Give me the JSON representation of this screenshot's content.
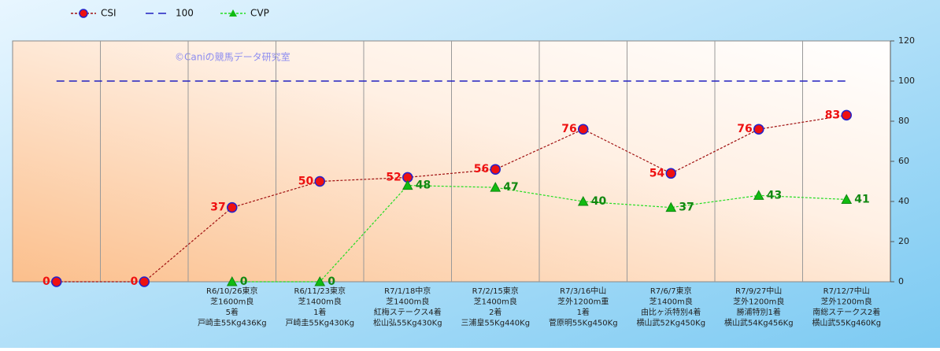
{
  "chart_data": {
    "type": "line",
    "annotation": "©Caniの競馬データ研究室",
    "categories": [
      null,
      null,
      [
        "R6/10/26東京",
        "芝1600m良",
        "5着",
        "戸崎圭55Kg436Kg"
      ],
      [
        "R6/11/23東京",
        "芝1400m良",
        "1着",
        "戸崎圭55Kg430Kg"
      ],
      [
        "R7/1/18中京",
        "芝1400m良",
        "紅梅ステークス4着",
        "松山弘55Kg430Kg"
      ],
      [
        "R7/2/15東京",
        "芝1400m良",
        "2着",
        "三浦皇55Kg440Kg"
      ],
      [
        "R7/3/16中山",
        "芝外1200m重",
        "1着",
        "菅原明55Kg450Kg"
      ],
      [
        "R7/6/7東京",
        "芝1400m良",
        "由比ヶ浜特別4着",
        "横山武52Kg450Kg"
      ],
      [
        "R7/9/27中山",
        "芝外1200m良",
        "勝浦特別1着",
        "横山武54Kg456Kg"
      ],
      [
        "R7/12/7中山",
        "芝外1200m良",
        "南総ステークス2着",
        "横山武55Kg460Kg"
      ]
    ],
    "series": [
      {
        "name": "CSI",
        "color": "#a01010",
        "marker": "circle",
        "values": [
          0,
          0,
          37,
          50,
          52,
          56,
          76,
          54,
          76,
          83
        ]
      },
      {
        "name": "100",
        "color": "#2020c0",
        "marker": "none",
        "values": [
          100,
          100,
          100,
          100,
          100,
          100,
          100,
          100,
          100,
          100
        ]
      },
      {
        "name": "CVP",
        "color": "#22dd22",
        "marker": "triangle",
        "values": [
          null,
          null,
          0,
          0,
          48,
          47,
          40,
          37,
          43,
          41
        ]
      }
    ],
    "ylim": [
      0,
      120
    ],
    "yticks": [
      0,
      20,
      40,
      60,
      80,
      100,
      120
    ],
    "grid": true,
    "legend": "top-left"
  }
}
